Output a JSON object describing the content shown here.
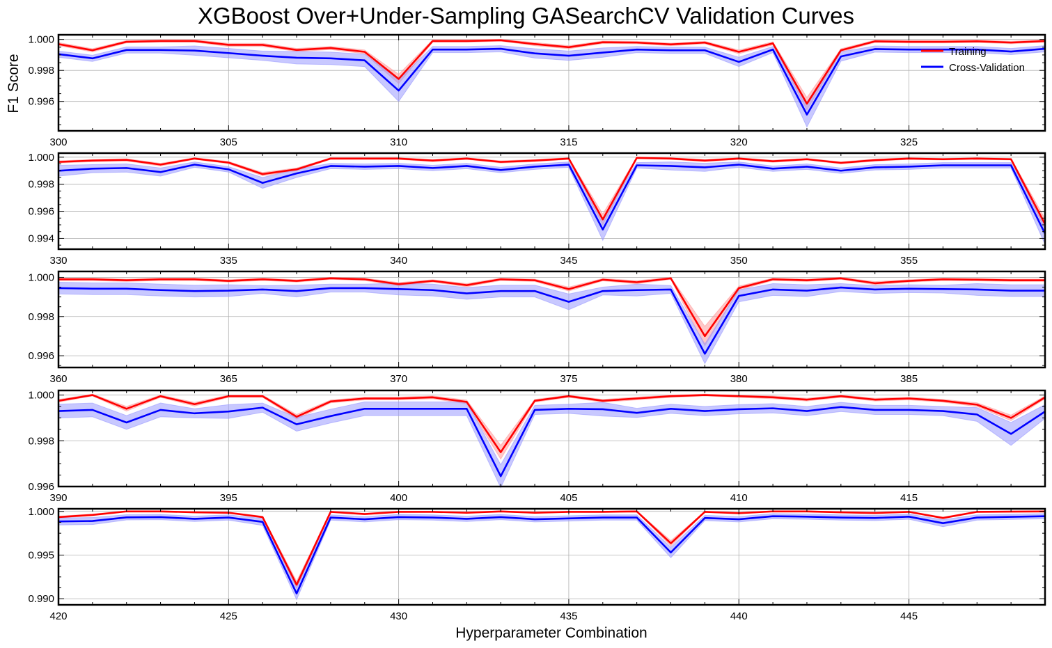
{
  "chart_data": {
    "type": "line",
    "title": "XGBoost Over+Under-Sampling GASearchCV Validation Curves",
    "xlabel": "Hyperparameter Combination",
    "ylabel": "F1 Score",
    "grid": true,
    "legend": {
      "placement": "top-right",
      "entries": [
        "Training",
        "Cross-Validation"
      ]
    },
    "colors": {
      "training": "#ff0000",
      "cv": "#0000ff",
      "training_band": "#ff9a9a",
      "cv_band": "#9a9aff"
    },
    "panels": [
      {
        "x_start": 300,
        "xlim": [
          300,
          329
        ],
        "xticks": [
          300,
          305,
          310,
          315,
          320,
          325
        ],
        "ylim": [
          0.9941,
          1.0003
        ],
        "yticks": [
          0.996,
          0.998,
          1.0
        ],
        "ytick_labels": [
          "0.996",
          "0.998",
          "1.000"
        ],
        "training": [
          0.9997,
          0.9993,
          0.99985,
          0.9999,
          0.9999,
          0.99965,
          0.99965,
          0.99932,
          0.99945,
          0.9992,
          0.99745,
          0.9999,
          0.9999,
          0.99995,
          0.9997,
          0.9995,
          0.99982,
          0.9998,
          0.99968,
          0.9998,
          0.9992,
          0.99975,
          0.99585,
          0.9993,
          0.99988,
          0.99985,
          0.99985,
          0.99988,
          0.9998,
          0.9999
        ],
        "training_std": [
          0.0001,
          0.0001,
          8e-05,
          8e-05,
          8e-05,
          0.0001,
          0.0001,
          0.0001,
          0.0001,
          0.00012,
          0.0003,
          8e-05,
          8e-05,
          6e-05,
          0.0001,
          0.0001,
          8e-05,
          8e-05,
          8e-05,
          8e-05,
          0.00012,
          0.0001,
          0.0004,
          0.0001,
          8e-05,
          8e-05,
          8e-05,
          8e-05,
          8e-05,
          8e-05
        ],
        "cv": [
          0.99905,
          0.99878,
          0.99932,
          0.99932,
          0.99928,
          0.99912,
          0.99895,
          0.99882,
          0.99878,
          0.99865,
          0.9967,
          0.99935,
          0.99935,
          0.9994,
          0.9991,
          0.99895,
          0.99915,
          0.99935,
          0.9993,
          0.9993,
          0.99855,
          0.99935,
          0.99515,
          0.9989,
          0.99938,
          0.99935,
          0.99935,
          0.99935,
          0.99922,
          0.9994
        ],
        "cv_std": [
          0.0002,
          0.0002,
          0.0002,
          0.0002,
          0.0003,
          0.0003,
          0.0003,
          0.0004,
          0.0004,
          0.0004,
          0.0007,
          0.0002,
          0.0002,
          0.0002,
          0.0003,
          0.0003,
          0.0003,
          0.0002,
          0.0002,
          0.0002,
          0.0003,
          0.0002,
          0.0008,
          0.0003,
          0.0002,
          0.0002,
          0.0002,
          0.0002,
          0.0002,
          0.0002
        ]
      },
      {
        "x_start": 330,
        "xlim": [
          330,
          359
        ],
        "xticks": [
          330,
          335,
          340,
          345,
          350,
          355
        ],
        "ylim": [
          0.9932,
          1.0003
        ],
        "yticks": [
          0.994,
          0.996,
          0.998,
          1.0
        ],
        "ytick_labels": [
          "0.994",
          "0.996",
          "0.998",
          "1.000"
        ],
        "training": [
          0.99965,
          0.99975,
          0.9998,
          0.99945,
          0.9999,
          0.9996,
          0.99875,
          0.9991,
          0.9999,
          0.9999,
          0.9999,
          0.99975,
          0.9999,
          0.99965,
          0.99975,
          0.9999,
          0.9954,
          0.99995,
          0.9999,
          0.99975,
          0.9999,
          0.9997,
          0.99985,
          0.99958,
          0.99978,
          0.9999,
          0.99985,
          0.9999,
          0.99985,
          0.99505
        ],
        "training_std": [
          8e-05,
          8e-05,
          8e-05,
          0.0001,
          6e-05,
          8e-05,
          0.00012,
          0.0001,
          6e-05,
          6e-05,
          6e-05,
          8e-05,
          6e-05,
          8e-05,
          8e-05,
          6e-05,
          0.0004,
          6e-05,
          6e-05,
          8e-05,
          6e-05,
          8e-05,
          6e-05,
          8e-05,
          8e-05,
          6e-05,
          6e-05,
          6e-05,
          6e-05,
          0.0004
        ],
        "cv": [
          0.999,
          0.99915,
          0.9992,
          0.9989,
          0.99945,
          0.9991,
          0.9981,
          0.9988,
          0.99935,
          0.9993,
          0.99935,
          0.9992,
          0.99935,
          0.99905,
          0.9993,
          0.99945,
          0.99465,
          0.9994,
          0.99935,
          0.99925,
          0.99945,
          0.99915,
          0.9993,
          0.999,
          0.99925,
          0.9993,
          0.9994,
          0.9994,
          0.9994,
          0.99435
        ],
        "cv_std": [
          0.0004,
          0.0003,
          0.0003,
          0.0003,
          0.0002,
          0.0002,
          0.0004,
          0.0003,
          0.0002,
          0.0002,
          0.0002,
          0.0002,
          0.0002,
          0.0002,
          0.0002,
          0.0002,
          0.0008,
          0.0002,
          0.0003,
          0.0003,
          0.0002,
          0.0002,
          0.0002,
          0.0002,
          0.0002,
          0.0002,
          0.0002,
          0.0002,
          0.0002,
          0.0008
        ]
      },
      {
        "x_start": 360,
        "xlim": [
          360,
          389
        ],
        "xticks": [
          360,
          365,
          370,
          375,
          380,
          385
        ],
        "ylim": [
          0.9954,
          1.0003
        ],
        "yticks": [
          0.996,
          0.998,
          1.0
        ],
        "ytick_labels": [
          "0.996",
          "0.998",
          "1.000"
        ],
        "training": [
          0.9999,
          0.9999,
          0.99985,
          0.9999,
          0.9999,
          0.99982,
          0.9999,
          0.99982,
          0.99995,
          0.9999,
          0.99965,
          0.99982,
          0.9996,
          0.9999,
          0.99985,
          0.9994,
          0.99988,
          0.99975,
          0.99995,
          0.997,
          0.99945,
          0.9999,
          0.99985,
          0.99995,
          0.9997,
          0.99982,
          0.9999,
          0.99988,
          0.99985,
          0.99985
        ],
        "training_std": [
          6e-05,
          6e-05,
          6e-05,
          6e-05,
          6e-05,
          6e-05,
          6e-05,
          6e-05,
          5e-05,
          6e-05,
          8e-05,
          6e-05,
          8e-05,
          6e-05,
          6e-05,
          0.0001,
          6e-05,
          8e-05,
          5e-05,
          0.0005,
          0.0001,
          6e-05,
          6e-05,
          5e-05,
          8e-05,
          6e-05,
          6e-05,
          6e-05,
          6e-05,
          6e-05
        ],
        "cv": [
          0.99945,
          0.99942,
          0.99942,
          0.99935,
          0.9993,
          0.99932,
          0.99938,
          0.9993,
          0.99945,
          0.99945,
          0.9994,
          0.99935,
          0.99918,
          0.9993,
          0.9993,
          0.99875,
          0.9993,
          0.99935,
          0.99938,
          0.9961,
          0.99905,
          0.99938,
          0.99932,
          0.99948,
          0.99938,
          0.99942,
          0.9994,
          0.99938,
          0.99932,
          0.99932
        ],
        "cv_std": [
          0.0003,
          0.0003,
          0.0003,
          0.0003,
          0.0003,
          0.0003,
          0.0002,
          0.0003,
          0.0002,
          0.0002,
          0.0003,
          0.0003,
          0.0003,
          0.0003,
          0.0003,
          0.0004,
          0.0002,
          0.0003,
          0.0002,
          0.0005,
          0.0003,
          0.0003,
          0.0003,
          0.0002,
          0.0002,
          0.0002,
          0.0002,
          0.0003,
          0.0003,
          0.0003
        ]
      },
      {
        "x_start": 390,
        "xlim": [
          390,
          419
        ],
        "xticks": [
          390,
          395,
          400,
          405,
          410,
          415
        ],
        "ylim": [
          0.996,
          1.0002
        ],
        "yticks": [
          0.996,
          0.998,
          1.0
        ],
        "ytick_labels": [
          "0.996",
          "0.998",
          "1.000"
        ],
        "training": [
          0.99975,
          1.0,
          0.9994,
          0.99995,
          0.9996,
          0.99995,
          0.99995,
          0.99905,
          0.99972,
          0.99985,
          0.99985,
          0.9999,
          0.9997,
          0.9975,
          0.99975,
          0.99995,
          0.99975,
          0.99985,
          0.99995,
          1.0,
          0.99995,
          0.9999,
          0.9998,
          0.99995,
          0.9998,
          0.99985,
          0.99975,
          0.99958,
          0.999,
          0.9999
        ],
        "training_std": [
          6e-05,
          4e-05,
          0.0001,
          5e-05,
          8e-05,
          5e-05,
          5e-05,
          0.0001,
          6e-05,
          6e-05,
          6e-05,
          6e-05,
          8e-05,
          0.0003,
          6e-05,
          5e-05,
          6e-05,
          6e-05,
          5e-05,
          4e-05,
          5e-05,
          6e-05,
          6e-05,
          5e-05,
          6e-05,
          6e-05,
          6e-05,
          8e-05,
          0.00012,
          6e-05
        ],
        "cv": [
          0.9993,
          0.99935,
          0.9988,
          0.99935,
          0.9992,
          0.99928,
          0.99945,
          0.99872,
          0.99908,
          0.9994,
          0.9994,
          0.9994,
          0.9994,
          0.99645,
          0.99935,
          0.9994,
          0.99938,
          0.99922,
          0.9994,
          0.9993,
          0.99938,
          0.99942,
          0.9993,
          0.99948,
          0.99935,
          0.99935,
          0.9993,
          0.99915,
          0.9983,
          0.99928
        ],
        "cv_std": [
          0.0003,
          0.0003,
          0.0003,
          0.0003,
          0.0002,
          0.0003,
          0.0002,
          0.0003,
          0.0003,
          0.0003,
          0.0003,
          0.0003,
          0.0003,
          0.0005,
          0.0002,
          0.0002,
          0.0003,
          0.0002,
          0.0002,
          0.0002,
          0.0002,
          0.0002,
          0.0002,
          0.0002,
          0.0002,
          0.0002,
          0.0002,
          0.0003,
          0.0005,
          0.0003
        ]
      },
      {
        "x_start": 420,
        "xlim": [
          420,
          449
        ],
        "xticks": [
          420,
          425,
          430,
          435,
          440,
          445
        ],
        "ylim": [
          0.9893,
          1.0003
        ],
        "yticks": [
          0.99,
          0.995,
          1.0
        ],
        "ytick_labels": [
          "0.990",
          "0.995",
          "1.000"
        ],
        "training": [
          0.99935,
          0.9996,
          1.0,
          1.0,
          0.9999,
          0.99985,
          0.99935,
          0.9916,
          0.99995,
          0.9997,
          0.99995,
          0.99995,
          0.99985,
          1.0,
          0.99985,
          0.99995,
          0.99995,
          1.0,
          0.99635,
          0.99995,
          0.9998,
          1.0,
          1.0,
          0.9999,
          0.99982,
          0.99995,
          0.99925,
          0.99995,
          0.99998,
          1.0
        ],
        "training_std": [
          0.0001,
          0.0001,
          5e-05,
          5e-05,
          6e-05,
          6e-05,
          0.0001,
          0.0004,
          5e-05,
          8e-05,
          5e-05,
          5e-05,
          6e-05,
          5e-05,
          6e-05,
          5e-05,
          5e-05,
          5e-05,
          0.0003,
          5e-05,
          6e-05,
          5e-05,
          5e-05,
          6e-05,
          6e-05,
          5e-05,
          0.0001,
          5e-05,
          5e-05,
          5e-05
        ],
        "cv": [
          0.99885,
          0.9989,
          0.99932,
          0.99935,
          0.99915,
          0.9993,
          0.9988,
          0.9906,
          0.9993,
          0.9991,
          0.99935,
          0.9993,
          0.99915,
          0.99935,
          0.9991,
          0.9992,
          0.9993,
          0.9993,
          0.9953,
          0.99925,
          0.9991,
          0.99945,
          0.9994,
          0.9993,
          0.99925,
          0.9994,
          0.99865,
          0.9993,
          0.99938,
          0.99945
        ],
        "cv_std": [
          0.0004,
          0.0004,
          0.0003,
          0.0003,
          0.0003,
          0.0003,
          0.0004,
          0.0007,
          0.0003,
          0.0003,
          0.0003,
          0.0003,
          0.0003,
          0.0003,
          0.0003,
          0.0003,
          0.0003,
          0.0003,
          0.0006,
          0.0003,
          0.0003,
          0.0003,
          0.0003,
          0.0003,
          0.0003,
          0.0003,
          0.0004,
          0.0003,
          0.0003,
          0.0003
        ]
      }
    ]
  }
}
